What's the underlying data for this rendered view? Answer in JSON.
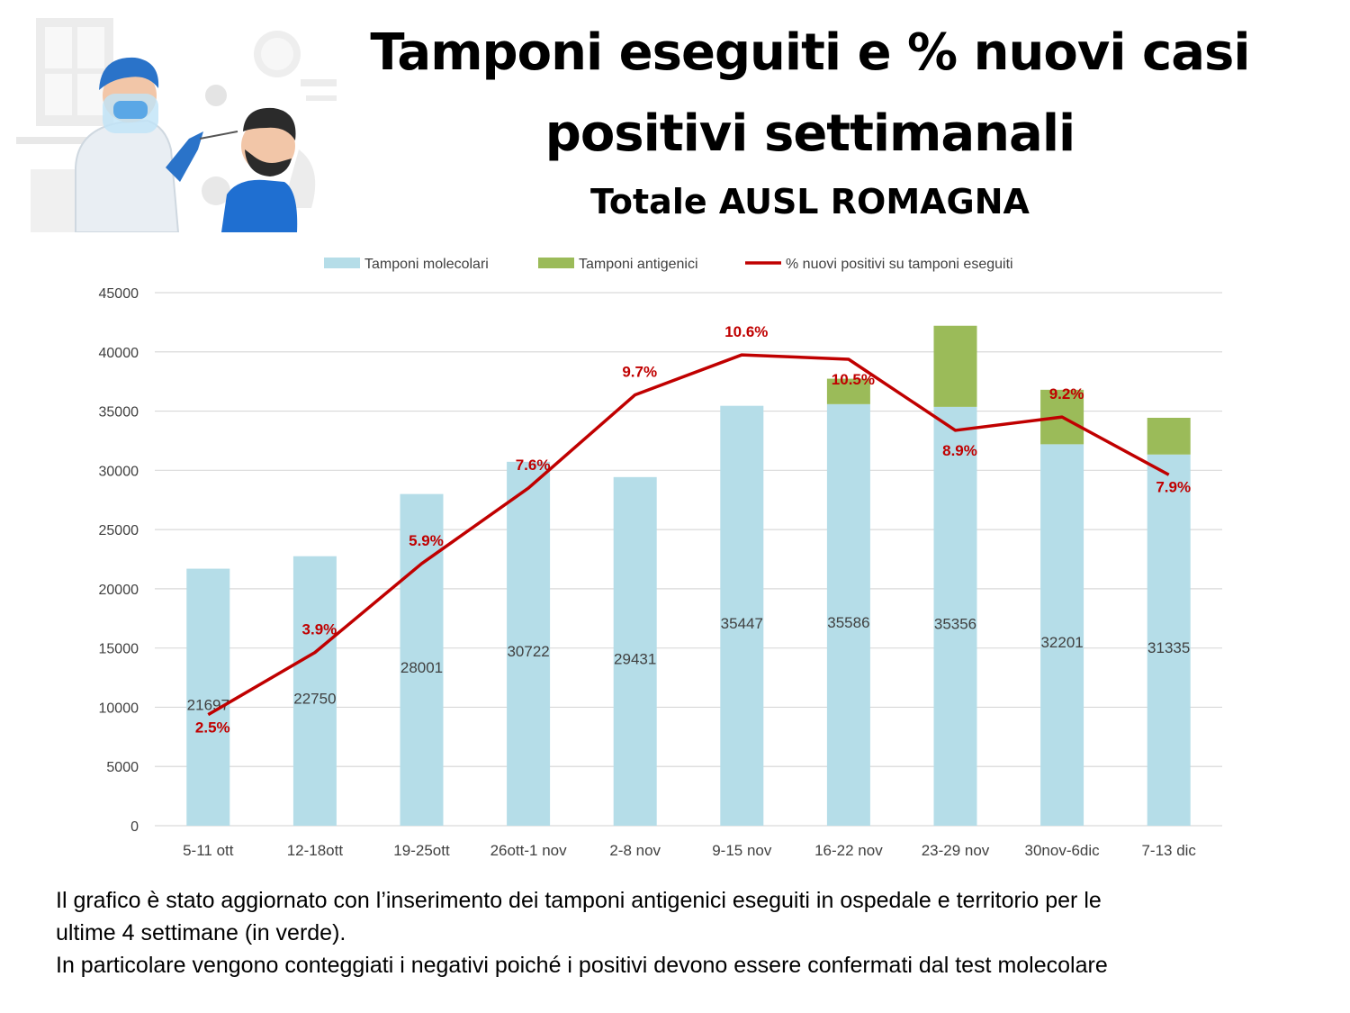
{
  "title": {
    "line1": "Tamponi eseguiti e % nuovi casi",
    "line2": "positivi settimanali",
    "subtitle": "Totale AUSL ROMAGNA"
  },
  "illustration": {
    "description_icon": "swab-test-illustration-icon"
  },
  "chart_data": {
    "type": "bar",
    "stacked": true,
    "categories": [
      "5-11 ott",
      "12-18ott",
      "19-25ott",
      "26ott-1 nov",
      "2-8 nov",
      "9-15 nov",
      "16-22 nov",
      "23-29 nov",
      "30nov-6dic",
      "7-13 dic"
    ],
    "series": [
      {
        "name": "Tamponi molecolari",
        "type": "bar",
        "color": "#B5DDE8",
        "values": [
          21697,
          22750,
          28001,
          30722,
          29431,
          35447,
          35586,
          35356,
          32201,
          31335
        ]
      },
      {
        "name": "Tamponi antigenici",
        "type": "bar",
        "color": "#9BBB59",
        "values": [
          0,
          0,
          0,
          0,
          0,
          0,
          2150,
          6850,
          4600,
          3100
        ]
      },
      {
        "name": "% nuovi positivi su tamponi eseguiti",
        "type": "line",
        "color": "#C00000",
        "values": [
          2.5,
          3.9,
          5.9,
          7.6,
          9.7,
          10.6,
          10.5,
          8.9,
          9.2,
          7.9
        ],
        "labels": [
          "2.5%",
          "3.9%",
          "5.9%",
          "7.6%",
          "9.7%",
          "10.6%",
          "10.5%",
          "8.9%",
          "9.2%",
          "7.9%"
        ]
      }
    ],
    "ylim": [
      0,
      45000
    ],
    "yticks": [
      "0",
      "5000",
      "10000",
      "15000",
      "20000",
      "25000",
      "30000",
      "35000",
      "40000",
      "45000"
    ],
    "y2lim": [
      0,
      12
    ],
    "grid": true,
    "legend": "top"
  },
  "note": {
    "line1": "Il grafico è stato aggiornato con l’inserimento dei tamponi antigenici eseguiti in ospedale e territorio per le",
    "line2": "ultime 4 settimane (in verde).",
    "line3": "In particolare vengono conteggiati i negativi poiché i positivi devono essere confermati dal test molecolare"
  }
}
